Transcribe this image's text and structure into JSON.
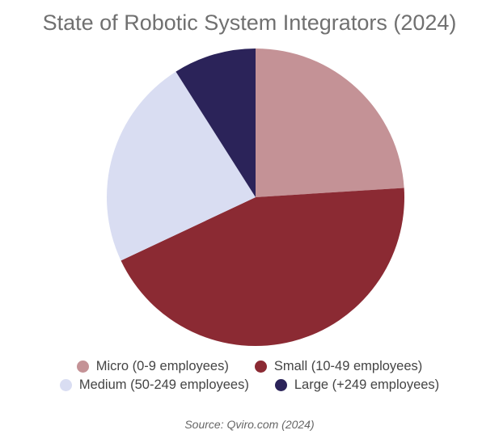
{
  "chart_data": {
    "type": "pie",
    "title": "State of Robotic System Integrators (2024)",
    "slices": [
      {
        "label": "Micro (0-9 employees)",
        "value": 24,
        "color": "#c49296"
      },
      {
        "label": "Small (10-49 employees)",
        "value": 44,
        "color": "#8b2a33"
      },
      {
        "label": "Medium (50-249 employees)",
        "value": 23,
        "color": "#d9ddf2"
      },
      {
        "label": "Large (+249 employees)",
        "value": 9,
        "color": "#2b2359"
      }
    ],
    "legend_position": "bottom",
    "source": "Source: Qviro.com (2024)"
  }
}
